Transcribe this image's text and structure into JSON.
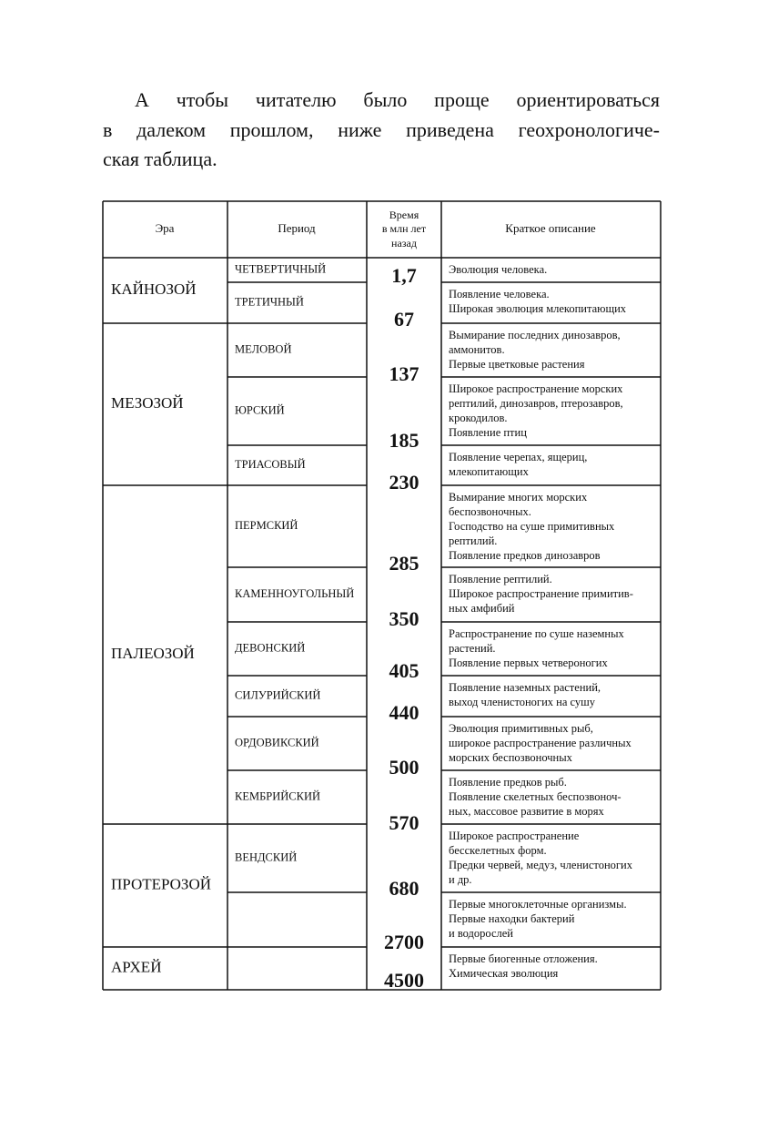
{
  "text": {
    "lines": [
      "А чтобы читателю было проще ориентироваться",
      "в далеком прошлом, ниже приведена геохронологиче-",
      "ская таблица."
    ]
  },
  "table": {
    "header": {
      "era": "Эра",
      "period": "Период",
      "time": [
        "Время",
        "в млн лет",
        "назад"
      ],
      "description": "Краткое описание"
    },
    "eras": [
      {
        "name": "КАЙНОЗОЙ",
        "periods": [
          {
            "name": "ЧЕТВЕРТИЧНЫЙ",
            "description": [
              "Эволюция человека."
            ]
          },
          {
            "name": "ТРЕТИЧНЫЙ",
            "description": [
              "Появление человека.",
              "Широкая эволюция млекопитающих"
            ]
          }
        ]
      },
      {
        "name": "МЕЗОЗОЙ",
        "periods": [
          {
            "name": "МЕЛОВОЙ",
            "description": [
              "Вымирание последних динозавров,",
              "аммонитов.",
              "Первые цветковые растения"
            ]
          },
          {
            "name": "ЮРСКИЙ",
            "description": [
              "Широкое распространение морских",
              "рептилий, динозавров, птерозавров,",
              "крокодилов.",
              "Появление птиц"
            ]
          },
          {
            "name": "ТРИАСОВЫЙ",
            "description": [
              "Появление черепах, ящериц,",
              "млекопитающих"
            ]
          }
        ]
      },
      {
        "name": "ПАЛЕОЗОЙ",
        "periods": [
          {
            "name": "ПЕРМСКИЙ",
            "description": [
              "Вымирание многих морских",
              "беспозвоночных.",
              "Господство на суше примитивных",
              "рептилий.",
              "Появление предков динозавров"
            ]
          },
          {
            "name": "КАМЕННОУГОЛЬНЫЙ",
            "description": [
              "Появление рептилий.",
              "Широкое распространение примитив-",
              "ных амфибий"
            ]
          },
          {
            "name": "ДЕВОНСКИЙ",
            "description": [
              "Распространение по суше наземных",
              "растений.",
              "Появление первых четвероногих"
            ]
          },
          {
            "name": "СИЛУРИЙСКИЙ",
            "description": [
              "Появление наземных растений,",
              "выход членистоногих на сушу"
            ]
          },
          {
            "name": "ОРДОВИКСКИЙ",
            "description": [
              "Эволюция примитивных рыб,",
              "широкое распространение различных",
              "морских беспозвоночных"
            ]
          },
          {
            "name": "КЕМБРИЙСКИЙ",
            "description": [
              "Появление предков рыб.",
              "Появление скелетных беспозвоноч-",
              "ных, массовое развитие в морях"
            ]
          }
        ]
      },
      {
        "name": "ПРОТЕРОЗОЙ",
        "periods": [
          {
            "name": "ВЕНДСКИЙ",
            "description": [
              "Широкое распространение",
              "бесскелетных форм.",
              "Предки червей, медуз, членистоногих",
              "и др."
            ]
          },
          {
            "description": [
              "Первые многоклеточные организмы.",
              "Первые находки бактерий",
              "и водорослей"
            ]
          }
        ]
      },
      {
        "name": "АРХЕЙ",
        "periods": [
          {
            "description": [
              "Первые биогенные отложения.",
              "Химическая эволюция"
            ]
          }
        ]
      }
    ],
    "times": [
      "1,7",
      "67",
      "137",
      "185",
      "230",
      "285",
      "350",
      "405",
      "440",
      "500",
      "570",
      "680",
      "2700",
      "4500"
    ]
  }
}
